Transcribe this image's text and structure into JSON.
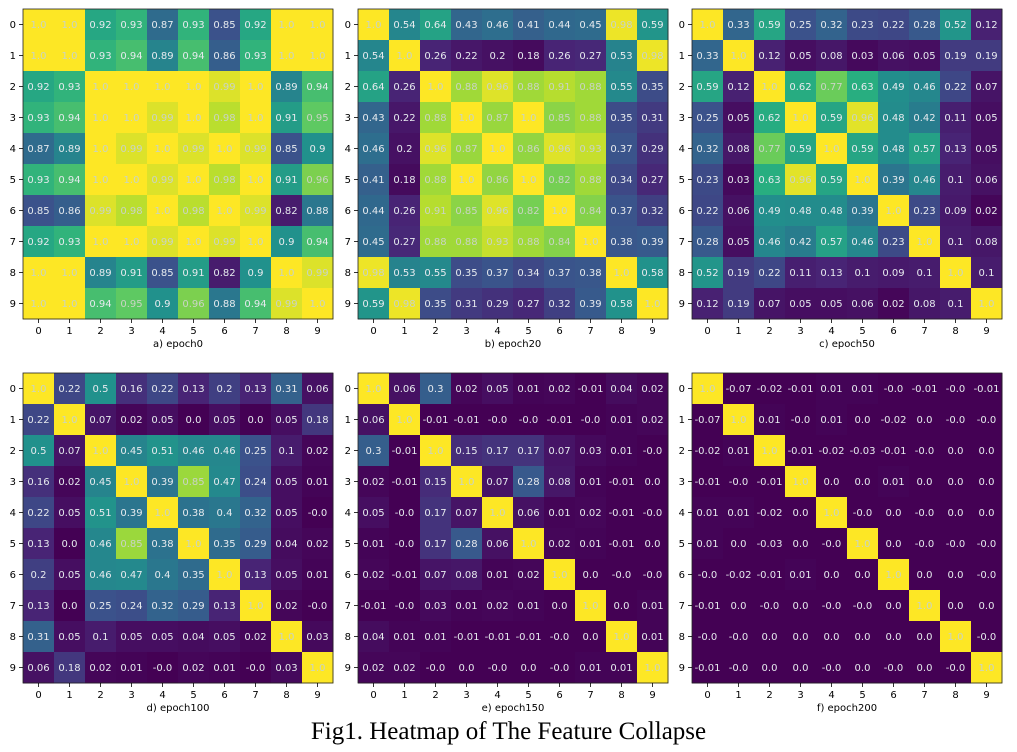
{
  "figure": {
    "caption": "Fig1. Heatmap of The Feature Collapse"
  },
  "chart_data": [
    {
      "type": "heatmap",
      "title": "a) epoch0",
      "x_ticks": [
        "0",
        "1",
        "2",
        "3",
        "4",
        "5",
        "6",
        "7",
        "8",
        "9"
      ],
      "y_ticks": [
        "0",
        "1",
        "2",
        "3",
        "4",
        "5",
        "6",
        "7",
        "8",
        "9"
      ],
      "colormap": "viridis",
      "value_range": [
        0.8,
        1.0
      ],
      "values": [
        [
          "1.0",
          "1.0",
          "0.92",
          "0.93",
          "0.87",
          "0.93",
          "0.85",
          "0.92",
          "1.0",
          "1.0"
        ],
        [
          "1.0",
          "1.0",
          "0.93",
          "0.94",
          "0.89",
          "0.94",
          "0.86",
          "0.93",
          "1.0",
          "1.0"
        ],
        [
          "0.92",
          "0.93",
          "1.0",
          "1.0",
          "1.0",
          "1.0",
          "0.99",
          "1.0",
          "0.89",
          "0.94"
        ],
        [
          "0.93",
          "0.94",
          "1.0",
          "1.0",
          "0.99",
          "1.0",
          "0.98",
          "1.0",
          "0.91",
          "0.95"
        ],
        [
          "0.87",
          "0.89",
          "1.0",
          "0.99",
          "1.0",
          "0.99",
          "1.0",
          "0.99",
          "0.85",
          "0.9"
        ],
        [
          "0.93",
          "0.94",
          "1.0",
          "1.0",
          "0.99",
          "1.0",
          "0.98",
          "1.0",
          "0.91",
          "0.96"
        ],
        [
          "0.85",
          "0.86",
          "0.99",
          "0.98",
          "1.0",
          "0.98",
          "1.0",
          "0.99",
          "0.82",
          "0.88"
        ],
        [
          "0.92",
          "0.93",
          "1.0",
          "1.0",
          "0.99",
          "1.0",
          "0.99",
          "1.0",
          "0.9",
          "0.94"
        ],
        [
          "1.0",
          "1.0",
          "0.89",
          "0.91",
          "0.85",
          "0.91",
          "0.82",
          "0.9",
          "1.0",
          "0.99"
        ],
        [
          "1.0",
          "1.0",
          "0.94",
          "0.95",
          "0.9",
          "0.96",
          "0.88",
          "0.94",
          "0.99",
          "1.0"
        ]
      ]
    },
    {
      "type": "heatmap",
      "title": "b) epoch20",
      "x_ticks": [
        "0",
        "1",
        "2",
        "3",
        "4",
        "5",
        "6",
        "7",
        "8",
        "9"
      ],
      "y_ticks": [
        "0",
        "1",
        "2",
        "3",
        "4",
        "5",
        "6",
        "7",
        "8",
        "9"
      ],
      "colormap": "viridis",
      "value_range": [
        0.15,
        1.0
      ],
      "values": [
        [
          "1.0",
          "0.54",
          "0.64",
          "0.43",
          "0.46",
          "0.41",
          "0.44",
          "0.45",
          "0.98",
          "0.59"
        ],
        [
          "0.54",
          "1.0",
          "0.26",
          "0.22",
          "0.2",
          "0.18",
          "0.26",
          "0.27",
          "0.53",
          "0.98"
        ],
        [
          "0.64",
          "0.26",
          "1.0",
          "0.88",
          "0.96",
          "0.88",
          "0.91",
          "0.88",
          "0.55",
          "0.35"
        ],
        [
          "0.43",
          "0.22",
          "0.88",
          "1.0",
          "0.87",
          "1.0",
          "0.85",
          "0.88",
          "0.35",
          "0.31"
        ],
        [
          "0.46",
          "0.2",
          "0.96",
          "0.87",
          "1.0",
          "0.86",
          "0.96",
          "0.93",
          "0.37",
          "0.29"
        ],
        [
          "0.41",
          "0.18",
          "0.88",
          "1.0",
          "0.86",
          "1.0",
          "0.82",
          "0.88",
          "0.34",
          "0.27"
        ],
        [
          "0.44",
          "0.26",
          "0.91",
          "0.85",
          "0.96",
          "0.82",
          "1.0",
          "0.84",
          "0.37",
          "0.32"
        ],
        [
          "0.45",
          "0.27",
          "0.88",
          "0.88",
          "0.93",
          "0.88",
          "0.84",
          "1.0",
          "0.38",
          "0.39"
        ],
        [
          "0.98",
          "0.53",
          "0.55",
          "0.35",
          "0.37",
          "0.34",
          "0.37",
          "0.38",
          "1.0",
          "0.58"
        ],
        [
          "0.59",
          "0.98",
          "0.35",
          "0.31",
          "0.29",
          "0.27",
          "0.32",
          "0.39",
          "0.58",
          "1.0"
        ]
      ]
    },
    {
      "type": "heatmap",
      "title": "c) epoch50",
      "x_ticks": [
        "0",
        "1",
        "2",
        "3",
        "4",
        "5",
        "6",
        "7",
        "8",
        "9"
      ],
      "y_ticks": [
        "0",
        "1",
        "2",
        "3",
        "4",
        "5",
        "6",
        "7",
        "8",
        "9"
      ],
      "colormap": "viridis",
      "value_range": [
        0.0,
        1.0
      ],
      "values": [
        [
          "1.0",
          "0.33",
          "0.59",
          "0.25",
          "0.32",
          "0.23",
          "0.22",
          "0.28",
          "0.52",
          "0.12"
        ],
        [
          "0.33",
          "1.0",
          "0.12",
          "0.05",
          "0.08",
          "0.03",
          "0.06",
          "0.05",
          "0.19",
          "0.19"
        ],
        [
          "0.59",
          "0.12",
          "1.0",
          "0.62",
          "0.77",
          "0.63",
          "0.49",
          "0.46",
          "0.22",
          "0.07"
        ],
        [
          "0.25",
          "0.05",
          "0.62",
          "1.0",
          "0.59",
          "0.96",
          "0.48",
          "0.42",
          "0.11",
          "0.05"
        ],
        [
          "0.32",
          "0.08",
          "0.77",
          "0.59",
          "1.0",
          "0.59",
          "0.48",
          "0.57",
          "0.13",
          "0.05"
        ],
        [
          "0.23",
          "0.03",
          "0.63",
          "0.96",
          "0.59",
          "1.0",
          "0.39",
          "0.46",
          "0.1",
          "0.06"
        ],
        [
          "0.22",
          "0.06",
          "0.49",
          "0.48",
          "0.48",
          "0.39",
          "1.0",
          "0.23",
          "0.09",
          "0.02"
        ],
        [
          "0.28",
          "0.05",
          "0.46",
          "0.42",
          "0.57",
          "0.46",
          "0.23",
          "1.0",
          "0.1",
          "0.08"
        ],
        [
          "0.52",
          "0.19",
          "0.22",
          "0.11",
          "0.13",
          "0.1",
          "0.09",
          "0.1",
          "1.0",
          "0.1"
        ],
        [
          "0.12",
          "0.19",
          "0.07",
          "0.05",
          "0.05",
          "0.06",
          "0.02",
          "0.08",
          "0.1",
          "1.0"
        ]
      ]
    },
    {
      "type": "heatmap",
      "title": "d) epoch100",
      "x_ticks": [
        "0",
        "1",
        "2",
        "3",
        "4",
        "5",
        "6",
        "7",
        "8",
        "9"
      ],
      "y_ticks": [
        "0",
        "1",
        "2",
        "3",
        "4",
        "5",
        "6",
        "7",
        "8",
        "9"
      ],
      "colormap": "viridis",
      "value_range": [
        0.0,
        1.0
      ],
      "values": [
        [
          "1.0",
          "0.22",
          "0.5",
          "0.16",
          "0.22",
          "0.13",
          "0.2",
          "0.13",
          "0.31",
          "0.06"
        ],
        [
          "0.22",
          "1.0",
          "0.07",
          "0.02",
          "0.05",
          "0.0",
          "0.05",
          "0.0",
          "0.05",
          "0.18"
        ],
        [
          "0.5",
          "0.07",
          "1.0",
          "0.45",
          "0.51",
          "0.46",
          "0.46",
          "0.25",
          "0.1",
          "0.02"
        ],
        [
          "0.16",
          "0.02",
          "0.45",
          "1.0",
          "0.39",
          "0.85",
          "0.47",
          "0.24",
          "0.05",
          "0.01"
        ],
        [
          "0.22",
          "0.05",
          "0.51",
          "0.39",
          "1.0",
          "0.38",
          "0.4",
          "0.32",
          "0.05",
          "-0.0"
        ],
        [
          "0.13",
          "0.0",
          "0.46",
          "0.85",
          "0.38",
          "1.0",
          "0.35",
          "0.29",
          "0.04",
          "0.02"
        ],
        [
          "0.2",
          "0.05",
          "0.46",
          "0.47",
          "0.4",
          "0.35",
          "1.0",
          "0.13",
          "0.05",
          "0.01"
        ],
        [
          "0.13",
          "0.0",
          "0.25",
          "0.24",
          "0.32",
          "0.29",
          "0.13",
          "1.0",
          "0.02",
          "-0.0"
        ],
        [
          "0.31",
          "0.05",
          "0.1",
          "0.05",
          "0.05",
          "0.04",
          "0.05",
          "0.02",
          "1.0",
          "0.03"
        ],
        [
          "0.06",
          "0.18",
          "0.02",
          "0.01",
          "-0.0",
          "0.02",
          "0.01",
          "-0.0",
          "0.03",
          "1.0"
        ]
      ]
    },
    {
      "type": "heatmap",
      "title": "e) epoch150",
      "x_ticks": [
        "0",
        "1",
        "2",
        "3",
        "4",
        "5",
        "6",
        "7",
        "8",
        "9"
      ],
      "y_ticks": [
        "0",
        "1",
        "2",
        "3",
        "4",
        "5",
        "6",
        "7",
        "8",
        "9"
      ],
      "colormap": "viridis",
      "value_range": [
        0.0,
        1.0
      ],
      "values": [
        [
          "1.0",
          "0.06",
          "0.3",
          "0.02",
          "0.05",
          "0.01",
          "0.02",
          "-0.01",
          "0.04",
          "0.02"
        ],
        [
          "0.06",
          "1.0",
          "-0.01",
          "-0.01",
          "-0.0",
          "-0.0",
          "-0.01",
          "-0.0",
          "0.01",
          "0.02"
        ],
        [
          "0.3",
          "-0.01",
          "1.0",
          "0.15",
          "0.17",
          "0.17",
          "0.07",
          "0.03",
          "0.01",
          "-0.0"
        ],
        [
          "0.02",
          "-0.01",
          "0.15",
          "1.0",
          "0.07",
          "0.28",
          "0.08",
          "0.01",
          "-0.01",
          "0.0"
        ],
        [
          "0.05",
          "-0.0",
          "0.17",
          "0.07",
          "1.0",
          "0.06",
          "0.01",
          "0.02",
          "-0.01",
          "-0.0"
        ],
        [
          "0.01",
          "-0.0",
          "0.17",
          "0.28",
          "0.06",
          "1.0",
          "0.02",
          "0.01",
          "-0.01",
          "0.0"
        ],
        [
          "0.02",
          "-0.01",
          "0.07",
          "0.08",
          "0.01",
          "0.02",
          "1.0",
          "0.0",
          "-0.0",
          "-0.0"
        ],
        [
          "-0.01",
          "-0.0",
          "0.03",
          "0.01",
          "0.02",
          "0.01",
          "0.0",
          "1.0",
          "0.0",
          "0.01"
        ],
        [
          "0.04",
          "0.01",
          "0.01",
          "-0.01",
          "-0.01",
          "-0.01",
          "-0.0",
          "0.0",
          "1.0",
          "0.01"
        ],
        [
          "0.02",
          "0.02",
          "-0.0",
          "0.0",
          "-0.0",
          "0.0",
          "-0.0",
          "0.01",
          "0.01",
          "1.0"
        ]
      ]
    },
    {
      "type": "heatmap",
      "title": "f) epoch200",
      "x_ticks": [
        "0",
        "1",
        "2",
        "3",
        "4",
        "5",
        "6",
        "7",
        "8",
        "9"
      ],
      "y_ticks": [
        "0",
        "1",
        "2",
        "3",
        "4",
        "5",
        "6",
        "7",
        "8",
        "9"
      ],
      "colormap": "viridis",
      "value_range": [
        0.0,
        1.0
      ],
      "values": [
        [
          "1.0",
          "-0.07",
          "-0.02",
          "-0.01",
          "0.01",
          "0.01",
          "-0.0",
          "-0.01",
          "-0.0",
          "-0.01"
        ],
        [
          "-0.07",
          "1.0",
          "0.01",
          "-0.0",
          "0.01",
          "0.0",
          "-0.02",
          "0.0",
          "-0.0",
          "-0.0"
        ],
        [
          "-0.02",
          "0.01",
          "1.0",
          "-0.01",
          "-0.02",
          "-0.03",
          "-0.01",
          "-0.0",
          "0.0",
          "0.0"
        ],
        [
          "-0.01",
          "-0.0",
          "-0.01",
          "1.0",
          "0.0",
          "0.0",
          "0.01",
          "0.0",
          "0.0",
          "0.0"
        ],
        [
          "0.01",
          "0.01",
          "-0.02",
          "0.0",
          "1.0",
          "-0.0",
          "0.0",
          "-0.0",
          "0.0",
          "0.0"
        ],
        [
          "0.01",
          "0.0",
          "-0.03",
          "0.0",
          "-0.0",
          "1.0",
          "0.0",
          "-0.0",
          "-0.0",
          "-0.0"
        ],
        [
          "-0.0",
          "-0.02",
          "-0.01",
          "0.01",
          "0.0",
          "0.0",
          "1.0",
          "0.0",
          "0.0",
          "-0.0"
        ],
        [
          "-0.01",
          "0.0",
          "-0.0",
          "0.0",
          "-0.0",
          "-0.0",
          "0.0",
          "1.0",
          "0.0",
          "0.0"
        ],
        [
          "-0.0",
          "-0.0",
          "0.0",
          "0.0",
          "0.0",
          "0.0",
          "0.0",
          "0.0",
          "1.0",
          "-0.0"
        ],
        [
          "-0.01",
          "-0.0",
          "0.0",
          "0.0",
          "-0.0",
          "0.0",
          "-0.0",
          "0.0",
          "-0.0",
          "1.0"
        ]
      ]
    }
  ]
}
